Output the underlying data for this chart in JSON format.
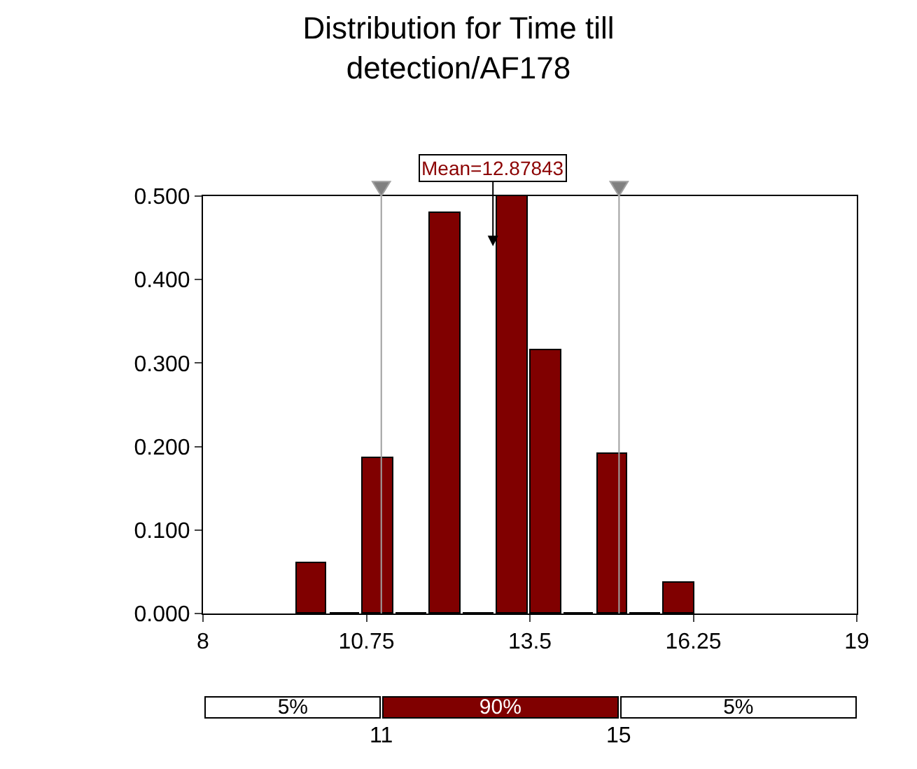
{
  "chart_data": [
    {
      "type": "histogram",
      "title": "Distribution for Time till\ndetection/AF178",
      "bins": [
        9.545,
        10.108,
        10.67,
        11.233,
        11.795,
        12.358,
        12.92,
        13.483,
        14.045,
        14.608,
        15.17,
        15.733,
        16.295
      ],
      "values": [
        0.06,
        0,
        0.186,
        0,
        0.48,
        0,
        0.5,
        0.316,
        0,
        0.191,
        0,
        0.037
      ],
      "color": "#800000",
      "xlim": [
        8,
        19
      ],
      "xticks": [
        8,
        10.75,
        13.5,
        16.25,
        19
      ],
      "ylim": [
        0,
        0.5
      ],
      "yticks": [
        {
          "value": 0,
          "label": "0.000"
        },
        {
          "value": 0.1,
          "label": "0.100"
        },
        {
          "value": 0.2,
          "label": "0.200"
        },
        {
          "value": 0.3,
          "label": "0.300"
        },
        {
          "value": 0.4,
          "label": "0.400"
        },
        {
          "value": 0.5,
          "label": "0.500"
        }
      ],
      "legend": false,
      "ref_lines": [
        {
          "axis": "x",
          "value": 11,
          "color": "#a0a0a0"
        },
        {
          "axis": "x",
          "value": 15,
          "color": "#a0a0a0"
        }
      ],
      "annotations": [
        {
          "text": "Mean=12.87843",
          "x": 12.87843,
          "y": 0.44
        }
      ]
    },
    {
      "type": "other",
      "annotations": [
        "5%",
        "90%",
        "5%",
        "11",
        "15"
      ],
      "colors": [
        "#ffffff",
        "#800000",
        "#ffffff"
      ]
    }
  ]
}
